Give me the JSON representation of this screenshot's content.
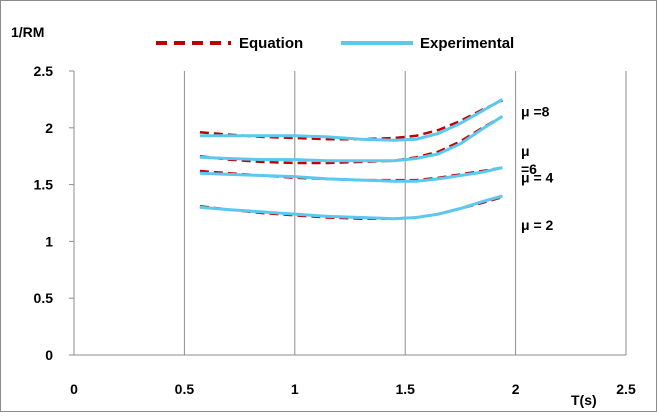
{
  "chart_data": {
    "type": "line",
    "title": "",
    "xlabel": "T(s)",
    "ylabel": "1/RM",
    "xlim": [
      0,
      2.5
    ],
    "ylim": [
      0,
      2.5
    ],
    "x_ticks": [
      "0",
      "0.5",
      "1",
      "1.5",
      "2",
      "2.5"
    ],
    "y_ticks": [
      "0",
      "0.5",
      "1",
      "1.5",
      "2",
      "2.5"
    ],
    "grid": "vertical",
    "legend": {
      "placement": "top",
      "entries": [
        {
          "label": "Equation",
          "style": "dashed",
          "color": "#c00000"
        },
        {
          "label": "Experimental",
          "style": "solid",
          "color": "#5bc8f0"
        }
      ]
    },
    "x": [
      0.57,
      0.7,
      0.85,
      1.0,
      1.15,
      1.3,
      1.45,
      1.55,
      1.65,
      1.75,
      1.85,
      1.94
    ],
    "series": [
      {
        "curve": "μ =8",
        "equation": [
          1.96,
          1.94,
          1.92,
          1.91,
          1.9,
          1.9,
          1.91,
          1.93,
          1.98,
          2.06,
          2.16,
          2.24
        ],
        "experimental": [
          1.93,
          1.93,
          1.93,
          1.93,
          1.92,
          1.9,
          1.89,
          1.9,
          1.95,
          2.04,
          2.15,
          2.25
        ]
      },
      {
        "curve": "μ =6",
        "equation": [
          1.75,
          1.72,
          1.7,
          1.69,
          1.69,
          1.7,
          1.71,
          1.74,
          1.79,
          1.88,
          2.0,
          2.1
        ],
        "experimental": [
          1.74,
          1.73,
          1.72,
          1.72,
          1.71,
          1.71,
          1.71,
          1.73,
          1.77,
          1.86,
          1.99,
          2.1
        ]
      },
      {
        "curve": "μ = 4",
        "equation": [
          1.62,
          1.6,
          1.58,
          1.56,
          1.55,
          1.54,
          1.54,
          1.54,
          1.56,
          1.59,
          1.62,
          1.65
        ],
        "experimental": [
          1.6,
          1.59,
          1.58,
          1.57,
          1.55,
          1.54,
          1.53,
          1.53,
          1.55,
          1.58,
          1.61,
          1.65
        ]
      },
      {
        "curve": "μ = 2",
        "equation": [
          1.31,
          1.28,
          1.25,
          1.23,
          1.21,
          1.2,
          1.2,
          1.21,
          1.24,
          1.29,
          1.34,
          1.39
        ],
        "experimental": [
          1.3,
          1.28,
          1.26,
          1.24,
          1.22,
          1.21,
          1.2,
          1.21,
          1.24,
          1.29,
          1.35,
          1.4
        ]
      }
    ],
    "curve_labels": [
      {
        "lines": [
          "μ =8"
        ],
        "y": 2.1
      },
      {
        "lines": [
          "μ",
          "=6"
        ],
        "y": 1.75
      },
      {
        "lines": [
          "μ = 4"
        ],
        "y": 1.52
      },
      {
        "lines": [
          "μ = 2"
        ],
        "y": 1.1
      }
    ]
  }
}
